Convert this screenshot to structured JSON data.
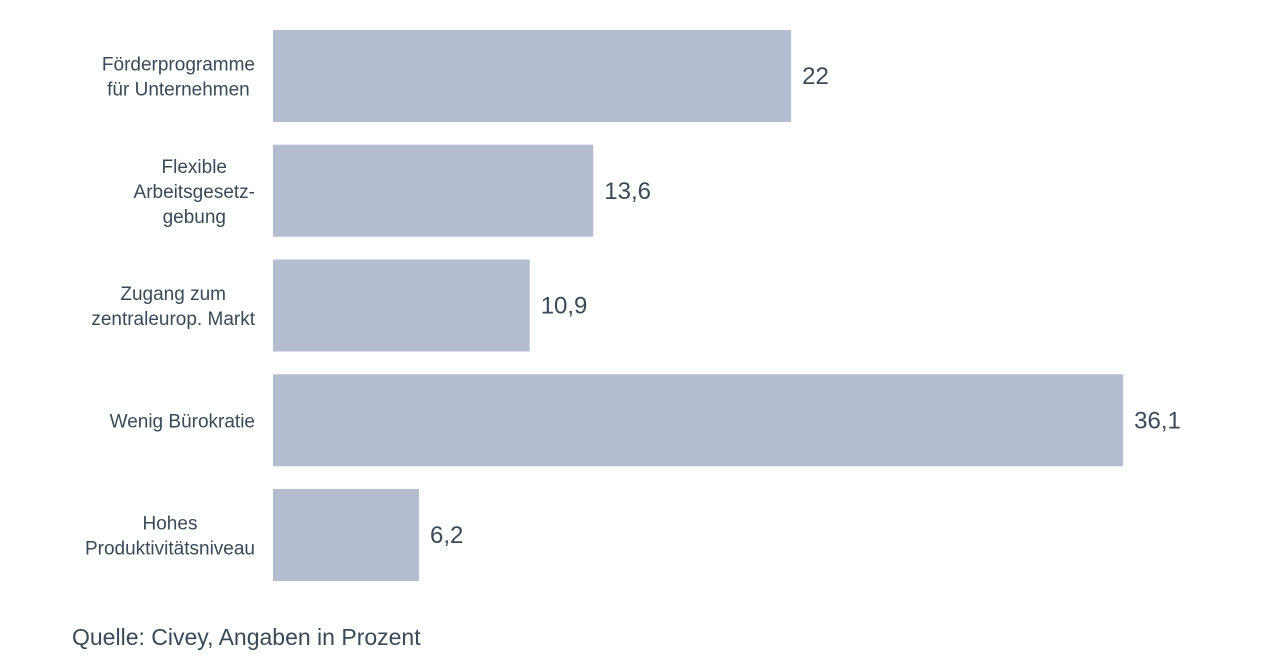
{
  "chart_data": {
    "type": "bar",
    "orientation": "horizontal",
    "categories": [
      [
        "Förderprogramme",
        "für Unternehmen"
      ],
      [
        "Flexible",
        "Arbeitsgesetz-",
        "gebung"
      ],
      [
        "Zugang zum",
        "zentraleurop. Markt"
      ],
      [
        "Wenig Bürokratie"
      ],
      [
        "Hohes",
        "Produktivitätsniveau"
      ]
    ],
    "values": [
      22,
      13.6,
      10.9,
      36.1,
      6.2
    ],
    "value_labels": [
      "22",
      "13,6",
      "10,9",
      "36,1",
      "6,2"
    ],
    "bar_color": "#b3bdcf",
    "text_color": "#3a4a58",
    "grid": false,
    "legend": "none"
  },
  "source": "Quelle: Civey, Angaben in Prozent"
}
